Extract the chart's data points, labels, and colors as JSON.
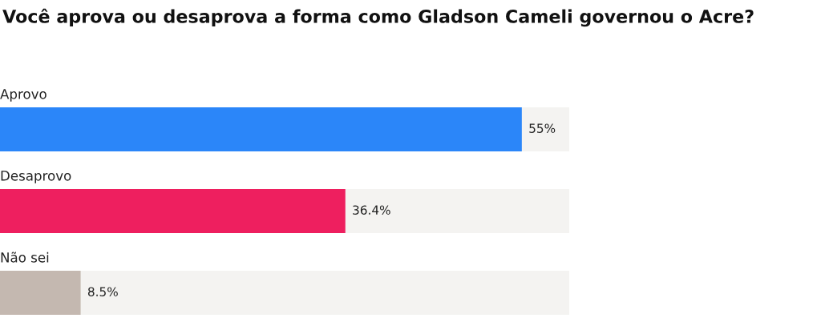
{
  "chart_data": {
    "type": "bar",
    "orientation": "horizontal",
    "title": "Você aprova ou desaprova a forma como Gladson Cameli governou o Acre?",
    "categories": [
      "Aprovo",
      "Desaprovo",
      "Não sei"
    ],
    "values": [
      55,
      36.4,
      8.5
    ],
    "colors": [
      "#2b86f9",
      "#ee1f5f",
      "#c4b8b0"
    ],
    "value_labels": [
      "55%",
      "36.4%",
      "8.5%"
    ],
    "xlim": [
      0,
      60
    ],
    "tick_labels": false
  }
}
